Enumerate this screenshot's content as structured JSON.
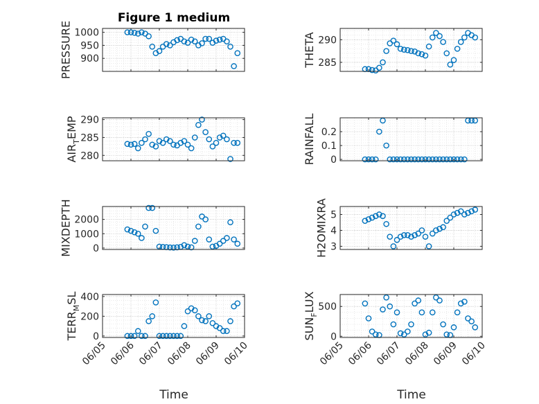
{
  "figure": {
    "title": "Figure 1 medium",
    "xlabel": "Time",
    "marker_color": "#0072BD",
    "grid": "on (major + minor dotted)"
  },
  "chart_data": [
    {
      "id": "pressure",
      "type": "scatter",
      "ylabel": "PRESSURE",
      "xlim": [
        "06/05",
        "06/10"
      ],
      "ylim": [
        850,
        1015
      ],
      "yticks": [
        900,
        950,
        1000
      ],
      "x": [
        "06/05 21:00",
        "06/06 00:00",
        "06/06 03:00",
        "06/06 06:00",
        "06/06 09:00",
        "06/06 12:00",
        "06/06 15:00",
        "06/06 18:00",
        "06/06 21:00",
        "06/07 00:00",
        "06/07 03:00",
        "06/07 06:00",
        "06/07 09:00",
        "06/07 12:00",
        "06/07 15:00",
        "06/07 18:00",
        "06/07 21:00",
        "06/08 00:00",
        "06/08 03:00",
        "06/08 06:00",
        "06/08 09:00",
        "06/08 12:00",
        "06/08 15:00",
        "06/08 18:00",
        "06/08 21:00",
        "06/09 00:00",
        "06/09 03:00",
        "06/09 06:00",
        "06/09 09:00",
        "06/09 12:00",
        "06/09 15:00",
        "06/09 18:00"
      ],
      "y": [
        1000,
        1000,
        998,
        995,
        1000,
        995,
        985,
        945,
        920,
        928,
        945,
        955,
        950,
        962,
        970,
        975,
        965,
        960,
        972,
        965,
        950,
        958,
        975,
        975,
        960,
        968,
        972,
        975,
        965,
        945,
        870,
        920
      ]
    },
    {
      "id": "theta",
      "type": "scatter",
      "ylabel": "THETA",
      "xlim": [
        "06/05",
        "06/10"
      ],
      "ylim": [
        283,
        292.5
      ],
      "yticks": [
        285,
        290
      ],
      "x": [
        "06/05 21:00",
        "06/06 00:00",
        "06/06 03:00",
        "06/06 06:00",
        "06/06 09:00",
        "06/06 12:00",
        "06/06 15:00",
        "06/06 18:00",
        "06/06 21:00",
        "06/07 00:00",
        "06/07 03:00",
        "06/07 06:00",
        "06/07 09:00",
        "06/07 12:00",
        "06/07 15:00",
        "06/07 18:00",
        "06/07 21:00",
        "06/08 00:00",
        "06/08 03:00",
        "06/08 06:00",
        "06/08 09:00",
        "06/08 12:00",
        "06/08 15:00",
        "06/08 18:00",
        "06/08 21:00",
        "06/09 00:00",
        "06/09 03:00",
        "06/09 06:00",
        "06/09 09:00",
        "06/09 12:00",
        "06/09 15:00",
        "06/09 18:00"
      ],
      "y": [
        283.5,
        283.5,
        283.3,
        283.2,
        283.8,
        285.0,
        287.5,
        289.2,
        289.8,
        289.0,
        288.0,
        287.8,
        287.7,
        287.5,
        287.4,
        287.0,
        286.8,
        286.5,
        288.5,
        290.5,
        291.5,
        290.8,
        289.5,
        287.0,
        284.5,
        285.5,
        288.0,
        289.5,
        290.5,
        291.5,
        291.0,
        290.5
      ]
    },
    {
      "id": "air_temp",
      "type": "scatter",
      "ylabel": "AIR_TEMP",
      "xlim": [
        "06/05",
        "06/10"
      ],
      "ylim": [
        278.5,
        290.5
      ],
      "yticks": [
        280,
        285,
        290
      ],
      "x": [
        "06/05 21:00",
        "06/06 00:00",
        "06/06 03:00",
        "06/06 06:00",
        "06/06 09:00",
        "06/06 12:00",
        "06/06 15:00",
        "06/06 18:00",
        "06/06 21:00",
        "06/07 00:00",
        "06/07 03:00",
        "06/07 06:00",
        "06/07 09:00",
        "06/07 12:00",
        "06/07 15:00",
        "06/07 18:00",
        "06/07 21:00",
        "06/08 00:00",
        "06/08 03:00",
        "06/08 06:00",
        "06/08 09:00",
        "06/08 12:00",
        "06/08 15:00",
        "06/08 18:00",
        "06/08 21:00",
        "06/09 00:00",
        "06/09 03:00",
        "06/09 06:00",
        "06/09 09:00",
        "06/09 12:00",
        "06/09 15:00",
        "06/09 18:00"
      ],
      "y": [
        283.2,
        283.0,
        283.2,
        282.0,
        283.5,
        284.5,
        286.0,
        283.0,
        282.5,
        284.0,
        283.5,
        284.5,
        284.0,
        283.0,
        282.8,
        283.5,
        284.0,
        283.0,
        282.0,
        285.0,
        288.5,
        290.0,
        286.5,
        284.5,
        282.5,
        283.5,
        285.0,
        285.5,
        284.5,
        279.0,
        283.5,
        283.5
      ]
    },
    {
      "id": "rainfall",
      "type": "scatter",
      "ylabel": "RAINFALL",
      "xlim": [
        "06/05",
        "06/10"
      ],
      "ylim": [
        -0.01,
        0.3
      ],
      "yticks": [
        0,
        0.1,
        0.2
      ],
      "x": [
        "06/05 21:00",
        "06/06 00:00",
        "06/06 03:00",
        "06/06 06:00",
        "06/06 09:00",
        "06/06 12:00",
        "06/06 15:00",
        "06/06 18:00",
        "06/06 21:00",
        "06/07 00:00",
        "06/07 03:00",
        "06/07 06:00",
        "06/07 09:00",
        "06/07 12:00",
        "06/07 15:00",
        "06/07 18:00",
        "06/07 21:00",
        "06/08 00:00",
        "06/08 03:00",
        "06/08 06:00",
        "06/08 09:00",
        "06/08 12:00",
        "06/08 15:00",
        "06/08 18:00",
        "06/08 21:00",
        "06/09 00:00",
        "06/09 03:00",
        "06/09 06:00",
        "06/09 09:00",
        "06/09 12:00",
        "06/09 15:00",
        "06/09 18:00"
      ],
      "y": [
        0,
        0,
        0,
        0,
        0.2,
        0.28,
        0.1,
        0,
        0,
        0,
        0,
        0,
        0,
        0,
        0,
        0,
        0,
        0,
        0,
        0,
        0,
        0,
        0,
        0,
        0,
        0,
        0,
        0,
        0,
        0.28,
        0.28,
        0.28
      ]
    },
    {
      "id": "mixdepth",
      "type": "scatter",
      "ylabel": "MIXDEPTH",
      "xlim": [
        "06/05",
        "06/10"
      ],
      "ylim": [
        -100,
        2900
      ],
      "yticks": [
        0,
        1000,
        2000
      ],
      "x": [
        "06/05 21:00",
        "06/06 00:00",
        "06/06 03:00",
        "06/06 06:00",
        "06/06 09:00",
        "06/06 12:00",
        "06/06 15:00",
        "06/06 18:00",
        "06/06 21:00",
        "06/07 00:00",
        "06/07 03:00",
        "06/07 06:00",
        "06/07 09:00",
        "06/07 12:00",
        "06/07 15:00",
        "06/07 18:00",
        "06/07 21:00",
        "06/08 00:00",
        "06/08 03:00",
        "06/08 06:00",
        "06/08 09:00",
        "06/08 12:00",
        "06/08 15:00",
        "06/08 18:00",
        "06/08 21:00",
        "06/09 00:00",
        "06/09 03:00",
        "06/09 06:00",
        "06/09 09:00",
        "06/09 12:00",
        "06/09 15:00",
        "06/09 18:00"
      ],
      "y": [
        1300,
        1200,
        1100,
        1000,
        700,
        1500,
        2800,
        2800,
        1200,
        100,
        80,
        60,
        40,
        30,
        50,
        80,
        200,
        100,
        50,
        500,
        1500,
        2200,
        2000,
        600,
        100,
        150,
        300,
        500,
        700,
        1800,
        600,
        300
      ]
    },
    {
      "id": "h2omixra",
      "type": "scatter",
      "ylabel": "H2OMIXRA",
      "xlim": [
        "06/05",
        "06/10"
      ],
      "ylim": [
        2.8,
        5.5
      ],
      "yticks": [
        3,
        4,
        5
      ],
      "x": [
        "06/05 21:00",
        "06/06 00:00",
        "06/06 03:00",
        "06/06 06:00",
        "06/06 09:00",
        "06/06 12:00",
        "06/06 15:00",
        "06/06 18:00",
        "06/06 21:00",
        "06/07 00:00",
        "06/07 03:00",
        "06/07 06:00",
        "06/07 09:00",
        "06/07 12:00",
        "06/07 15:00",
        "06/07 18:00",
        "06/07 21:00",
        "06/08 00:00",
        "06/08 03:00",
        "06/08 06:00",
        "06/08 09:00",
        "06/08 12:00",
        "06/08 15:00",
        "06/08 18:00",
        "06/08 21:00",
        "06/09 00:00",
        "06/09 03:00",
        "06/09 06:00",
        "06/09 09:00",
        "06/09 12:00",
        "06/09 15:00",
        "06/09 18:00"
      ],
      "y": [
        4.6,
        4.7,
        4.8,
        4.9,
        5.0,
        4.9,
        4.4,
        3.6,
        3.0,
        3.4,
        3.6,
        3.7,
        3.7,
        3.6,
        3.7,
        3.8,
        4.0,
        3.6,
        3.0,
        3.8,
        4.0,
        4.1,
        4.2,
        4.6,
        4.8,
        5.0,
        5.1,
        5.2,
        5.0,
        5.1,
        5.2,
        5.3
      ]
    },
    {
      "id": "terr_msl",
      "type": "scatter",
      "ylabel": "TERR_MSL",
      "xlim": [
        "06/05",
        "06/10"
      ],
      "ylim": [
        -15,
        420
      ],
      "yticks": [
        0,
        200,
        400
      ],
      "x": [
        "06/05 21:00",
        "06/06 00:00",
        "06/06 03:00",
        "06/06 06:00",
        "06/06 09:00",
        "06/06 12:00",
        "06/06 15:00",
        "06/06 18:00",
        "06/06 21:00",
        "06/07 00:00",
        "06/07 03:00",
        "06/07 06:00",
        "06/07 09:00",
        "06/07 12:00",
        "06/07 15:00",
        "06/07 18:00",
        "06/07 21:00",
        "06/08 00:00",
        "06/08 03:00",
        "06/08 06:00",
        "06/08 09:00",
        "06/08 12:00",
        "06/08 15:00",
        "06/08 18:00",
        "06/08 21:00",
        "06/09 00:00",
        "06/09 03:00",
        "06/09 06:00",
        "06/09 09:00",
        "06/09 12:00",
        "06/09 15:00",
        "06/09 18:00"
      ],
      "y": [
        0,
        0,
        0,
        50,
        0,
        0,
        150,
        200,
        340,
        0,
        0,
        0,
        0,
        0,
        0,
        0,
        100,
        250,
        280,
        260,
        200,
        160,
        150,
        200,
        130,
        100,
        80,
        50,
        50,
        150,
        300,
        330
      ]
    },
    {
      "id": "sun_flux",
      "type": "scatter",
      "ylabel": "SUN_FLUX",
      "xlim": [
        "06/05",
        "06/10"
      ],
      "ylim": [
        -20,
        700
      ],
      "yticks": [
        0,
        500
      ],
      "x": [
        "06/05 21:00",
        "06/06 00:00",
        "06/06 03:00",
        "06/06 06:00",
        "06/06 09:00",
        "06/06 12:00",
        "06/06 15:00",
        "06/06 18:00",
        "06/06 21:00",
        "06/07 00:00",
        "06/07 03:00",
        "06/07 06:00",
        "06/07 09:00",
        "06/07 12:00",
        "06/07 15:00",
        "06/07 18:00",
        "06/07 21:00",
        "06/08 00:00",
        "06/08 03:00",
        "06/08 06:00",
        "06/08 09:00",
        "06/08 12:00",
        "06/08 15:00",
        "06/08 18:00",
        "06/08 21:00",
        "06/09 00:00",
        "06/09 03:00",
        "06/09 06:00",
        "06/09 09:00",
        "06/09 12:00",
        "06/09 15:00",
        "06/09 18:00"
      ],
      "y": [
        550,
        300,
        80,
        30,
        20,
        450,
        650,
        500,
        200,
        400,
        50,
        30,
        80,
        200,
        550,
        600,
        400,
        30,
        60,
        400,
        650,
        600,
        200,
        30,
        20,
        150,
        400,
        550,
        580,
        300,
        250,
        150
      ]
    }
  ]
}
